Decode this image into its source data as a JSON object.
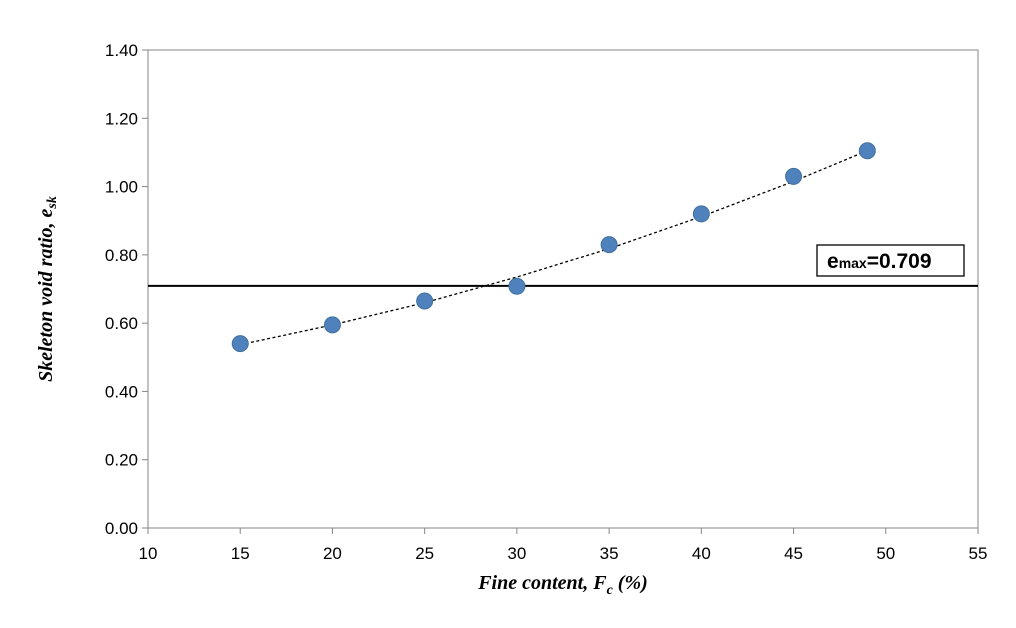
{
  "chart_data": {
    "type": "scatter",
    "x_ticks": [
      "10",
      "15",
      "20",
      "25",
      "30",
      "35",
      "40",
      "45",
      "50",
      "55"
    ],
    "y_ticks": [
      "0.00",
      "0.20",
      "0.40",
      "0.60",
      "0.80",
      "1.00",
      "1.20",
      "1.40"
    ],
    "xlim": [
      10,
      55
    ],
    "ylim": [
      0,
      1.4
    ],
    "xlabel": {
      "main": "Fine  content, F",
      "sub": "c",
      "suffix": " (%)"
    },
    "ylabel": {
      "main": "Skeleton void ratio, e",
      "sub": "sk"
    },
    "grid": false,
    "series": [
      {
        "x": [
          15,
          20,
          25,
          30,
          35,
          40,
          45,
          49
        ],
        "y": [
          0.54,
          0.595,
          0.665,
          0.708,
          0.83,
          0.92,
          1.03,
          1.105
        ],
        "marker_color": "#4f81bd"
      }
    ],
    "trendline": {
      "style": "dotted",
      "x": [
        15,
        20,
        25,
        30,
        35,
        40,
        45,
        49
      ],
      "y": [
        0.537,
        0.595,
        0.66,
        0.735,
        0.818,
        0.912,
        1.015,
        1.105
      ]
    },
    "reference_line": {
      "y": 0.709,
      "color": "#000000"
    },
    "annotation": {
      "main": "e",
      "sub": "max",
      "value": "=0.709"
    }
  }
}
